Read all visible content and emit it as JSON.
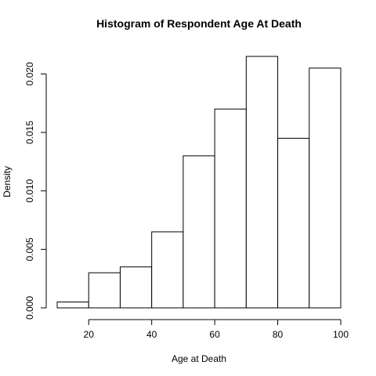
{
  "chart_data": {
    "type": "bar",
    "title": "Histogram of Respondent Age At Death",
    "xlabel": "Age at Death",
    "ylabel": "Density",
    "bins": [
      {
        "from": 10,
        "to": 20,
        "value": 0.0005
      },
      {
        "from": 20,
        "to": 30,
        "value": 0.003
      },
      {
        "from": 30,
        "to": 40,
        "value": 0.0035
      },
      {
        "from": 40,
        "to": 50,
        "value": 0.0065
      },
      {
        "from": 50,
        "to": 60,
        "value": 0.013
      },
      {
        "from": 60,
        "to": 70,
        "value": 0.017
      },
      {
        "from": 70,
        "to": 80,
        "value": 0.0215
      },
      {
        "from": 80,
        "to": 90,
        "value": 0.0145
      },
      {
        "from": 90,
        "to": 100,
        "value": 0.0205
      }
    ],
    "xlim": [
      10,
      100
    ],
    "ylim": [
      0,
      0.0215
    ],
    "x_ticks": [
      20,
      40,
      60,
      80,
      100
    ],
    "x_tick_labels": [
      "20",
      "40",
      "60",
      "80",
      "100"
    ],
    "y_ticks": [
      0,
      0.005,
      0.01,
      0.015,
      0.02
    ],
    "y_tick_labels": [
      "0.000",
      "0.005",
      "0.010",
      "0.015",
      "0.020"
    ],
    "grid": false,
    "legend": "none",
    "colors": {
      "bar_fill": "#ffffff",
      "bar_stroke": "#000000"
    }
  }
}
